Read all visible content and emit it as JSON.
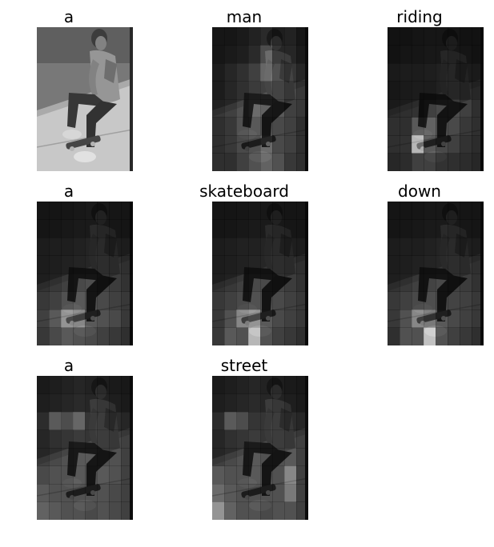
{
  "panels": [
    {
      "word": "a",
      "overlay": "none",
      "attention": []
    },
    {
      "word": "man",
      "overlay": "attention",
      "attention": [
        [
          0.1,
          0.1,
          0.15,
          0.25,
          0.35,
          0.2,
          0.25,
          0.1
        ],
        [
          0.1,
          0.15,
          0.2,
          0.35,
          0.55,
          0.3,
          0.3,
          0.15
        ],
        [
          0.1,
          0.2,
          0.3,
          0.45,
          0.6,
          0.45,
          0.35,
          0.2
        ],
        [
          0.1,
          0.2,
          0.3,
          0.4,
          0.45,
          0.35,
          0.25,
          0.15
        ],
        [
          0.15,
          0.2,
          0.3,
          0.45,
          0.4,
          0.35,
          0.2,
          0.15
        ],
        [
          0.1,
          0.15,
          0.3,
          0.35,
          0.3,
          0.25,
          0.2,
          0.1
        ],
        [
          0.1,
          0.15,
          0.25,
          0.3,
          0.45,
          0.25,
          0.2,
          0.1
        ],
        [
          0.1,
          0.1,
          0.2,
          0.3,
          0.4,
          0.3,
          0.15,
          0.1
        ]
      ]
    },
    {
      "word": "riding",
      "overlay": "attention",
      "attention": [
        [
          0.05,
          0.05,
          0.08,
          0.1,
          0.1,
          0.08,
          0.05,
          0.05
        ],
        [
          0.05,
          0.08,
          0.1,
          0.12,
          0.12,
          0.1,
          0.08,
          0.05
        ],
        [
          0.08,
          0.1,
          0.1,
          0.12,
          0.15,
          0.12,
          0.1,
          0.08
        ],
        [
          0.05,
          0.08,
          0.1,
          0.1,
          0.15,
          0.12,
          0.1,
          0.05
        ],
        [
          0.08,
          0.1,
          0.12,
          0.2,
          0.25,
          0.28,
          0.2,
          0.1
        ],
        [
          0.1,
          0.1,
          0.35,
          0.4,
          0.3,
          0.25,
          0.15,
          0.1
        ],
        [
          0.1,
          0.12,
          0.75,
          0.35,
          0.25,
          0.2,
          0.12,
          0.08
        ],
        [
          0.05,
          0.08,
          0.2,
          0.2,
          0.12,
          0.1,
          0.08,
          0.05
        ]
      ]
    },
    {
      "word": "a",
      "overlay": "attention",
      "attention": [
        [
          0.08,
          0.08,
          0.1,
          0.12,
          0.15,
          0.12,
          0.1,
          0.08
        ],
        [
          0.08,
          0.1,
          0.12,
          0.15,
          0.15,
          0.12,
          0.1,
          0.08
        ],
        [
          0.1,
          0.12,
          0.12,
          0.15,
          0.18,
          0.15,
          0.12,
          0.1
        ],
        [
          0.1,
          0.12,
          0.15,
          0.18,
          0.2,
          0.18,
          0.15,
          0.1
        ],
        [
          0.12,
          0.15,
          0.2,
          0.25,
          0.28,
          0.22,
          0.18,
          0.12
        ],
        [
          0.15,
          0.2,
          0.3,
          0.35,
          0.3,
          0.25,
          0.2,
          0.15
        ],
        [
          0.2,
          0.35,
          0.6,
          0.55,
          0.35,
          0.3,
          0.25,
          0.15
        ],
        [
          0.15,
          0.25,
          0.35,
          0.3,
          0.25,
          0.2,
          0.15,
          0.1
        ]
      ]
    },
    {
      "word": "skateboard",
      "overlay": "attention",
      "attention": [
        [
          0.08,
          0.08,
          0.1,
          0.12,
          0.12,
          0.1,
          0.08,
          0.08
        ],
        [
          0.08,
          0.1,
          0.12,
          0.15,
          0.15,
          0.12,
          0.1,
          0.08
        ],
        [
          0.1,
          0.12,
          0.15,
          0.15,
          0.18,
          0.15,
          0.12,
          0.1
        ],
        [
          0.1,
          0.12,
          0.15,
          0.18,
          0.2,
          0.18,
          0.15,
          0.1
        ],
        [
          0.12,
          0.15,
          0.2,
          0.25,
          0.25,
          0.22,
          0.18,
          0.12
        ],
        [
          0.15,
          0.2,
          0.25,
          0.3,
          0.28,
          0.25,
          0.2,
          0.15
        ],
        [
          0.15,
          0.3,
          0.55,
          0.6,
          0.35,
          0.25,
          0.2,
          0.15
        ],
        [
          0.15,
          0.35,
          0.3,
          0.75,
          0.3,
          0.2,
          0.15,
          0.1
        ]
      ]
    },
    {
      "word": "down",
      "overlay": "attention",
      "attention": [
        [
          0.08,
          0.08,
          0.1,
          0.12,
          0.12,
          0.1,
          0.08,
          0.08
        ],
        [
          0.08,
          0.1,
          0.12,
          0.15,
          0.15,
          0.12,
          0.1,
          0.08
        ],
        [
          0.1,
          0.12,
          0.12,
          0.15,
          0.18,
          0.15,
          0.12,
          0.1
        ],
        [
          0.1,
          0.12,
          0.15,
          0.18,
          0.2,
          0.18,
          0.15,
          0.1
        ],
        [
          0.12,
          0.15,
          0.2,
          0.22,
          0.25,
          0.2,
          0.18,
          0.12
        ],
        [
          0.15,
          0.2,
          0.25,
          0.28,
          0.25,
          0.22,
          0.2,
          0.15
        ],
        [
          0.15,
          0.3,
          0.55,
          0.5,
          0.35,
          0.25,
          0.2,
          0.15
        ],
        [
          0.1,
          0.3,
          0.3,
          0.8,
          0.3,
          0.2,
          0.15,
          0.1
        ]
      ]
    },
    {
      "word": "a",
      "overlay": "attention",
      "attention": [
        [
          0.15,
          0.2,
          0.25,
          0.3,
          0.25,
          0.2,
          0.15,
          0.12
        ],
        [
          0.2,
          0.25,
          0.3,
          0.35,
          0.3,
          0.25,
          0.2,
          0.15
        ],
        [
          0.25,
          0.55,
          0.5,
          0.6,
          0.35,
          0.3,
          0.25,
          0.2
        ],
        [
          0.2,
          0.3,
          0.35,
          0.4,
          0.35,
          0.3,
          0.25,
          0.2
        ],
        [
          0.2,
          0.25,
          0.3,
          0.35,
          0.35,
          0.3,
          0.3,
          0.2
        ],
        [
          0.25,
          0.3,
          0.3,
          0.35,
          0.3,
          0.35,
          0.3,
          0.2
        ],
        [
          0.35,
          0.3,
          0.3,
          0.3,
          0.3,
          0.3,
          0.25,
          0.2
        ],
        [
          0.4,
          0.35,
          0.3,
          0.3,
          0.25,
          0.3,
          0.25,
          0.2
        ]
      ]
    },
    {
      "word": "street",
      "overlay": "attention",
      "attention": [
        [
          0.15,
          0.2,
          0.25,
          0.3,
          0.25,
          0.2,
          0.15,
          0.12
        ],
        [
          0.2,
          0.25,
          0.3,
          0.35,
          0.3,
          0.25,
          0.2,
          0.15
        ],
        [
          0.25,
          0.55,
          0.5,
          0.35,
          0.35,
          0.3,
          0.25,
          0.2
        ],
        [
          0.2,
          0.3,
          0.35,
          0.4,
          0.35,
          0.3,
          0.25,
          0.2
        ],
        [
          0.2,
          0.25,
          0.3,
          0.35,
          0.3,
          0.3,
          0.35,
          0.2
        ],
        [
          0.35,
          0.3,
          0.3,
          0.35,
          0.3,
          0.3,
          0.55,
          0.2
        ],
        [
          0.45,
          0.35,
          0.3,
          0.3,
          0.3,
          0.3,
          0.5,
          0.2
        ],
        [
          0.6,
          0.4,
          0.3,
          0.3,
          0.25,
          0.3,
          0.3,
          0.2
        ]
      ]
    }
  ]
}
